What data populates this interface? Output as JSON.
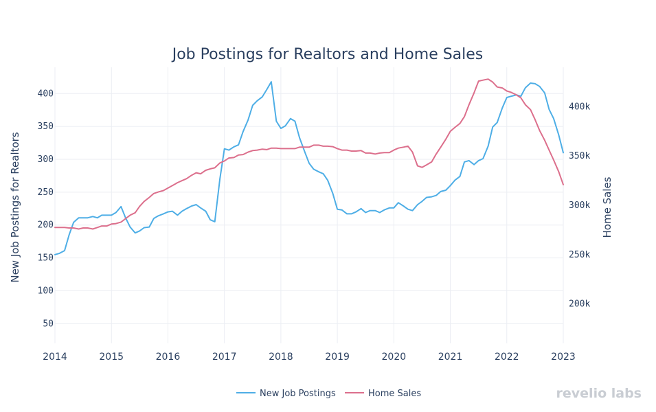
{
  "chart_data": {
    "type": "line",
    "title": "Job Postings for Realtors and Home Sales",
    "ylabel_left": "New Job Postings for Realtors",
    "ylabel_right": "Home Sales",
    "xlim": [
      2014.0,
      2023.0
    ],
    "ylim_left": [
      20,
      440
    ],
    "ylim_right": [
      160000,
      440000
    ],
    "x_ticks": [
      {
        "value": 2014,
        "label": "2014"
      },
      {
        "value": 2015,
        "label": "2015"
      },
      {
        "value": 2016,
        "label": "2016"
      },
      {
        "value": 2017,
        "label": "2017"
      },
      {
        "value": 2018,
        "label": "2018"
      },
      {
        "value": 2019,
        "label": "2019"
      },
      {
        "value": 2020,
        "label": "2020"
      },
      {
        "value": 2021,
        "label": "2021"
      },
      {
        "value": 2022,
        "label": "2022"
      },
      {
        "value": 2023,
        "label": "2023"
      }
    ],
    "y_ticks_left": [
      {
        "value": 50,
        "label": "50"
      },
      {
        "value": 100,
        "label": "100"
      },
      {
        "value": 150,
        "label": "150"
      },
      {
        "value": 200,
        "label": "200"
      },
      {
        "value": 250,
        "label": "250"
      },
      {
        "value": 300,
        "label": "300"
      },
      {
        "value": 350,
        "label": "350"
      },
      {
        "value": 400,
        "label": "400"
      }
    ],
    "y_ticks_right": [
      {
        "value": 200000,
        "label": "200k"
      },
      {
        "value": 250000,
        "label": "250k"
      },
      {
        "value": 300000,
        "label": "300k"
      },
      {
        "value": 350000,
        "label": "350k"
      },
      {
        "value": 400000,
        "label": "400k"
      }
    ],
    "grid": true,
    "legend_position": "bottom-center",
    "series": [
      {
        "name": "New Job Postings",
        "axis": "left",
        "color": "#4eaee6",
        "points": [
          [
            2014.0,
            155
          ],
          [
            2014.08,
            157
          ],
          [
            2014.17,
            161
          ],
          [
            2014.25,
            185
          ],
          [
            2014.33,
            204
          ],
          [
            2014.42,
            211
          ],
          [
            2014.5,
            211
          ],
          [
            2014.58,
            211
          ],
          [
            2014.67,
            213
          ],
          [
            2014.75,
            211
          ],
          [
            2014.83,
            215
          ],
          [
            2014.92,
            215
          ],
          [
            2015.0,
            215
          ],
          [
            2015.08,
            219
          ],
          [
            2015.17,
            228
          ],
          [
            2015.25,
            211
          ],
          [
            2015.33,
            197
          ],
          [
            2015.42,
            188
          ],
          [
            2015.5,
            191
          ],
          [
            2015.58,
            196
          ],
          [
            2015.67,
            197
          ],
          [
            2015.75,
            210
          ],
          [
            2015.83,
            214
          ],
          [
            2015.92,
            217
          ],
          [
            2016.0,
            220
          ],
          [
            2016.08,
            221
          ],
          [
            2016.17,
            215
          ],
          [
            2016.25,
            221
          ],
          [
            2016.33,
            225
          ],
          [
            2016.42,
            229
          ],
          [
            2016.5,
            231
          ],
          [
            2016.58,
            226
          ],
          [
            2016.67,
            221
          ],
          [
            2016.75,
            208
          ],
          [
            2016.83,
            205
          ],
          [
            2016.92,
            270
          ],
          [
            2017.0,
            316
          ],
          [
            2017.08,
            314
          ],
          [
            2017.17,
            319
          ],
          [
            2017.25,
            322
          ],
          [
            2017.33,
            342
          ],
          [
            2017.42,
            360
          ],
          [
            2017.5,
            382
          ],
          [
            2017.58,
            389
          ],
          [
            2017.67,
            395
          ],
          [
            2017.75,
            406
          ],
          [
            2017.83,
            418
          ],
          [
            2017.92,
            358
          ],
          [
            2018.0,
            347
          ],
          [
            2018.08,
            351
          ],
          [
            2018.17,
            362
          ],
          [
            2018.25,
            358
          ],
          [
            2018.33,
            333
          ],
          [
            2018.42,
            312
          ],
          [
            2018.5,
            294
          ],
          [
            2018.58,
            285
          ],
          [
            2018.67,
            281
          ],
          [
            2018.75,
            278
          ],
          [
            2018.83,
            268
          ],
          [
            2018.92,
            248
          ],
          [
            2019.0,
            224
          ],
          [
            2019.08,
            223
          ],
          [
            2019.17,
            217
          ],
          [
            2019.25,
            217
          ],
          [
            2019.33,
            220
          ],
          [
            2019.42,
            225
          ],
          [
            2019.5,
            219
          ],
          [
            2019.58,
            222
          ],
          [
            2019.67,
            222
          ],
          [
            2019.75,
            219
          ],
          [
            2019.83,
            223
          ],
          [
            2019.92,
            226
          ],
          [
            2020.0,
            226
          ],
          [
            2020.08,
            234
          ],
          [
            2020.17,
            229
          ],
          [
            2020.25,
            224
          ],
          [
            2020.33,
            222
          ],
          [
            2020.42,
            231
          ],
          [
            2020.5,
            236
          ],
          [
            2020.58,
            242
          ],
          [
            2020.67,
            243
          ],
          [
            2020.75,
            245
          ],
          [
            2020.83,
            251
          ],
          [
            2020.92,
            253
          ],
          [
            2021.0,
            260
          ],
          [
            2021.08,
            268
          ],
          [
            2021.17,
            274
          ],
          [
            2021.25,
            296
          ],
          [
            2021.33,
            298
          ],
          [
            2021.42,
            292
          ],
          [
            2021.5,
            298
          ],
          [
            2021.58,
            301
          ],
          [
            2021.67,
            320
          ],
          [
            2021.75,
            349
          ],
          [
            2021.83,
            356
          ],
          [
            2021.92,
            378
          ],
          [
            2022.0,
            394
          ],
          [
            2022.08,
            396
          ],
          [
            2022.17,
            398
          ],
          [
            2022.25,
            396
          ],
          [
            2022.33,
            409
          ],
          [
            2022.42,
            416
          ],
          [
            2022.5,
            415
          ],
          [
            2022.58,
            411
          ],
          [
            2022.67,
            401
          ],
          [
            2022.75,
            376
          ],
          [
            2022.83,
            362
          ],
          [
            2022.92,
            337
          ],
          [
            2023.0,
            310
          ]
        ]
      },
      {
        "name": "Home Sales",
        "axis": "right",
        "color": "#dc6f8c",
        "points": [
          [
            2014.0,
            277500
          ],
          [
            2014.08,
            277500
          ],
          [
            2014.17,
            277500
          ],
          [
            2014.25,
            277000
          ],
          [
            2014.33,
            277000
          ],
          [
            2014.42,
            276000
          ],
          [
            2014.5,
            277000
          ],
          [
            2014.58,
            277000
          ],
          [
            2014.67,
            276000
          ],
          [
            2014.75,
            277500
          ],
          [
            2014.83,
            279000
          ],
          [
            2014.92,
            279000
          ],
          [
            2015.0,
            281000
          ],
          [
            2015.08,
            281500
          ],
          [
            2015.17,
            283000
          ],
          [
            2015.25,
            286500
          ],
          [
            2015.33,
            290000
          ],
          [
            2015.42,
            292500
          ],
          [
            2015.5,
            299000
          ],
          [
            2015.58,
            304000
          ],
          [
            2015.67,
            308000
          ],
          [
            2015.75,
            312000
          ],
          [
            2015.83,
            313500
          ],
          [
            2015.92,
            315000
          ],
          [
            2016.0,
            317500
          ],
          [
            2016.08,
            320000
          ],
          [
            2016.17,
            323000
          ],
          [
            2016.25,
            325000
          ],
          [
            2016.33,
            327000
          ],
          [
            2016.42,
            330500
          ],
          [
            2016.5,
            333000
          ],
          [
            2016.58,
            332000
          ],
          [
            2016.67,
            335500
          ],
          [
            2016.75,
            337000
          ],
          [
            2016.83,
            338000
          ],
          [
            2016.92,
            343000
          ],
          [
            2017.0,
            345000
          ],
          [
            2017.08,
            348000
          ],
          [
            2017.17,
            348500
          ],
          [
            2017.25,
            351000
          ],
          [
            2017.33,
            351500
          ],
          [
            2017.42,
            354000
          ],
          [
            2017.5,
            355500
          ],
          [
            2017.58,
            356000
          ],
          [
            2017.67,
            357000
          ],
          [
            2017.75,
            356500
          ],
          [
            2017.83,
            358000
          ],
          [
            2017.92,
            358000
          ],
          [
            2018.0,
            357500
          ],
          [
            2018.08,
            357500
          ],
          [
            2018.17,
            357500
          ],
          [
            2018.25,
            357500
          ],
          [
            2018.33,
            359000
          ],
          [
            2018.42,
            359000
          ],
          [
            2018.5,
            359000
          ],
          [
            2018.58,
            361000
          ],
          [
            2018.67,
            361000
          ],
          [
            2018.75,
            360000
          ],
          [
            2018.83,
            360000
          ],
          [
            2018.92,
            359500
          ],
          [
            2019.0,
            357500
          ],
          [
            2019.08,
            356000
          ],
          [
            2019.17,
            356000
          ],
          [
            2019.25,
            355000
          ],
          [
            2019.33,
            355000
          ],
          [
            2019.42,
            355500
          ],
          [
            2019.5,
            353000
          ],
          [
            2019.58,
            353000
          ],
          [
            2019.67,
            352000
          ],
          [
            2019.75,
            353000
          ],
          [
            2019.83,
            353500
          ],
          [
            2019.92,
            353500
          ],
          [
            2020.0,
            356000
          ],
          [
            2020.08,
            358000
          ],
          [
            2020.17,
            359000
          ],
          [
            2020.25,
            360000
          ],
          [
            2020.33,
            354000
          ],
          [
            2020.42,
            340000
          ],
          [
            2020.5,
            338500
          ],
          [
            2020.58,
            341000
          ],
          [
            2020.67,
            344000
          ],
          [
            2020.75,
            352000
          ],
          [
            2020.83,
            359000
          ],
          [
            2020.92,
            367000
          ],
          [
            2021.0,
            375000
          ],
          [
            2021.08,
            379000
          ],
          [
            2021.17,
            383000
          ],
          [
            2021.25,
            390000
          ],
          [
            2021.33,
            402000
          ],
          [
            2021.42,
            414000
          ],
          [
            2021.5,
            426000
          ],
          [
            2021.58,
            427000
          ],
          [
            2021.67,
            428000
          ],
          [
            2021.75,
            425000
          ],
          [
            2021.83,
            420000
          ],
          [
            2021.92,
            419000
          ],
          [
            2022.0,
            416000
          ],
          [
            2022.08,
            414500
          ],
          [
            2022.17,
            412000
          ],
          [
            2022.25,
            409000
          ],
          [
            2022.33,
            402000
          ],
          [
            2022.42,
            397000
          ],
          [
            2022.5,
            387000
          ],
          [
            2022.58,
            376000
          ],
          [
            2022.67,
            366000
          ],
          [
            2022.75,
            356000
          ],
          [
            2022.83,
            346000
          ],
          [
            2022.92,
            334000
          ],
          [
            2023.0,
            321000
          ]
        ]
      }
    ]
  },
  "brand": {
    "logo_text": "revelio labs"
  }
}
